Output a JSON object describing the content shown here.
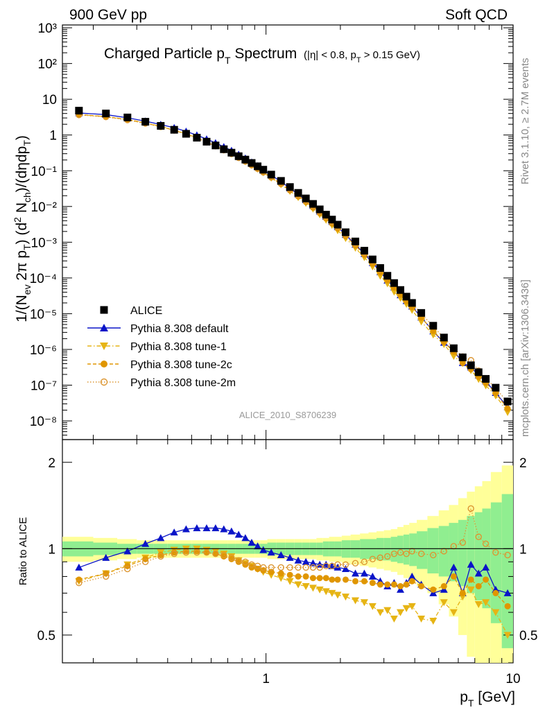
{
  "header": {
    "left": "900 GeV pp",
    "right": "Soft QCD",
    "title_main": "Charged Particle p",
    "title_sub": "T",
    "title_word": " Spectrum",
    "title_cut": "(|η| < 0.8, p",
    "title_cut_sub": "T",
    "title_cut_end": " > 0.15 GeV)",
    "analysis_id": "ALICE_2010_S8706239"
  },
  "side_labels": {
    "rivet": "Rivet 3.1.10, ≥ 2.7M events",
    "mcplots": "mcplots.cern.ch [arXiv:1306.3436]"
  },
  "axes": {
    "ylabel_top": "1/(N_ev 2π p_T) (d² N_ch)/(dηdp_T)",
    "ylabel_bottom": "Ratio to ALICE",
    "xlabel": "p_T [GeV]",
    "x_tick_labels": [
      "1",
      "10"
    ],
    "y_top_tick_labels": [
      "10⁻⁸",
      "10⁻⁷",
      "10⁻⁶",
      "10⁻⁵",
      "10⁻⁴",
      "10⁻³",
      "10⁻²",
      "10⁻¹",
      "1",
      "10",
      "10²",
      "10³"
    ],
    "y_bottom_tick_labels": [
      "0.5",
      "1",
      "2"
    ]
  },
  "legend": [
    {
      "label": "ALICE",
      "marker": "square",
      "color": "#000000",
      "line": "none"
    },
    {
      "label": "Pythia 8.308 default",
      "marker": "triangle-up",
      "color": "#0a14c8",
      "line": "solid"
    },
    {
      "label": "Pythia 8.308 tune-1",
      "marker": "triangle-down",
      "color": "#e6b414",
      "line": "dashdot"
    },
    {
      "label": "Pythia 8.308 tune-2c",
      "marker": "circle",
      "color": "#e09600",
      "line": "dashed"
    },
    {
      "label": "Pythia 8.308 tune-2m",
      "marker": "circle-open",
      "color": "#dc9632",
      "line": "dotted"
    }
  ],
  "chart_data": {
    "type": "scatter",
    "x_scale": "log",
    "y_scale_top": "log",
    "y_scale_bottom": "log",
    "xlim": [
      0.15,
      10
    ],
    "ylim_top": [
      3e-09,
      1200.0
    ],
    "ylim_bottom": [
      0.4,
      2.4
    ],
    "x": [
      0.175,
      0.225,
      0.275,
      0.325,
      0.375,
      0.425,
      0.475,
      0.525,
      0.575,
      0.625,
      0.675,
      0.725,
      0.775,
      0.825,
      0.875,
      0.925,
      0.975,
      1.05,
      1.15,
      1.25,
      1.35,
      1.45,
      1.55,
      1.65,
      1.75,
      1.85,
      1.95,
      2.1,
      2.3,
      2.5,
      2.7,
      2.9,
      3.1,
      3.3,
      3.5,
      3.7,
      3.9,
      4.25,
      4.75,
      5.25,
      5.75,
      6.25,
      6.75,
      7.25,
      7.75,
      8.5,
      9.5
    ],
    "alice": [
      4.8,
      4.0,
      3.1,
      2.35,
      1.8,
      1.4,
      1.08,
      0.84,
      0.65,
      0.51,
      0.4,
      0.32,
      0.255,
      0.205,
      0.165,
      0.133,
      0.107,
      0.078,
      0.052,
      0.035,
      0.024,
      0.0168,
      0.0118,
      0.0083,
      0.0059,
      0.0043,
      0.0031,
      0.0019,
      0.00105,
      0.00058,
      0.00033,
      0.00019,
      0.000115,
      7.2e-05,
      4.6e-05,
      3e-05,
      2e-05,
      1.05e-05,
      4.6e-06,
      2.15e-06,
      1.08e-06,
      6e-07,
      3.6e-07,
      2.3e-07,
      1.5e-07,
      8.5e-08,
      3.5e-08
    ],
    "ratio_series": [
      {
        "name": "Pythia 8.308 default",
        "values": [
          0.86,
          0.93,
          0.98,
          1.04,
          1.09,
          1.14,
          1.17,
          1.18,
          1.18,
          1.18,
          1.17,
          1.15,
          1.12,
          1.09,
          1.05,
          1.02,
          0.99,
          0.97,
          0.95,
          0.93,
          0.91,
          0.9,
          0.89,
          0.88,
          0.88,
          0.87,
          0.86,
          0.85,
          0.82,
          0.82,
          0.8,
          0.77,
          0.74,
          0.76,
          0.72,
          0.76,
          0.8,
          0.75,
          0.7,
          0.72,
          0.86,
          0.7,
          0.88,
          0.82,
          0.86,
          0.72,
          0.7
        ]
      },
      {
        "name": "Pythia 8.308 tune-1",
        "values": [
          0.77,
          0.82,
          0.88,
          0.93,
          0.97,
          0.99,
          1.0,
          1.0,
          0.99,
          0.98,
          0.96,
          0.94,
          0.91,
          0.89,
          0.87,
          0.85,
          0.83,
          0.81,
          0.79,
          0.77,
          0.75,
          0.74,
          0.73,
          0.72,
          0.71,
          0.7,
          0.69,
          0.68,
          0.66,
          0.65,
          0.63,
          0.6,
          0.61,
          0.57,
          0.6,
          0.62,
          0.63,
          0.57,
          0.56,
          0.65,
          0.6,
          0.68,
          0.72,
          0.64,
          0.65,
          0.6,
          0.5
        ]
      },
      {
        "name": "Pythia 8.308 tune-2c",
        "values": [
          0.78,
          0.82,
          0.87,
          0.92,
          0.95,
          0.97,
          0.98,
          0.98,
          0.97,
          0.96,
          0.94,
          0.92,
          0.9,
          0.88,
          0.86,
          0.85,
          0.84,
          0.83,
          0.82,
          0.81,
          0.8,
          0.8,
          0.79,
          0.79,
          0.79,
          0.78,
          0.78,
          0.78,
          0.77,
          0.77,
          0.76,
          0.75,
          0.75,
          0.75,
          0.74,
          0.75,
          0.77,
          0.74,
          0.72,
          0.74,
          0.8,
          0.7,
          0.78,
          0.74,
          0.78,
          0.7,
          0.63
        ]
      },
      {
        "name": "Pythia 8.308 tune-2m",
        "values": [
          0.76,
          0.8,
          0.85,
          0.9,
          0.94,
          0.96,
          0.97,
          0.97,
          0.97,
          0.96,
          0.95,
          0.93,
          0.91,
          0.9,
          0.88,
          0.87,
          0.86,
          0.86,
          0.86,
          0.86,
          0.86,
          0.86,
          0.86,
          0.86,
          0.87,
          0.87,
          0.88,
          0.88,
          0.89,
          0.9,
          0.92,
          0.93,
          0.94,
          0.96,
          0.97,
          0.96,
          0.98,
          0.96,
          0.95,
          0.98,
          1.02,
          1.05,
          1.38,
          1.1,
          1.04,
          0.97,
          0.95
        ]
      }
    ],
    "uncertainty_band_green": [
      0.06,
      0.05,
      0.04,
      0.04,
      0.04,
      0.04,
      0.04,
      0.04,
      0.04,
      0.04,
      0.04,
      0.04,
      0.04,
      0.04,
      0.04,
      0.04,
      0.04,
      0.05,
      0.05,
      0.05,
      0.05,
      0.05,
      0.05,
      0.05,
      0.06,
      0.06,
      0.06,
      0.07,
      0.07,
      0.08,
      0.08,
      0.09,
      0.09,
      0.1,
      0.11,
      0.12,
      0.13,
      0.15,
      0.18,
      0.2,
      0.23,
      0.26,
      0.3,
      0.34,
      0.38,
      0.45,
      0.55
    ],
    "uncertainty_band_yellow": [
      0.1,
      0.09,
      0.08,
      0.07,
      0.07,
      0.07,
      0.07,
      0.07,
      0.07,
      0.07,
      0.07,
      0.07,
      0.07,
      0.07,
      0.07,
      0.07,
      0.07,
      0.08,
      0.08,
      0.08,
      0.08,
      0.08,
      0.08,
      0.09,
      0.09,
      0.1,
      0.1,
      0.11,
      0.12,
      0.13,
      0.14,
      0.15,
      0.16,
      0.17,
      0.19,
      0.21,
      0.23,
      0.26,
      0.3,
      0.36,
      0.42,
      0.5,
      0.58,
      0.65,
      0.72,
      0.85,
      0.95
    ]
  }
}
